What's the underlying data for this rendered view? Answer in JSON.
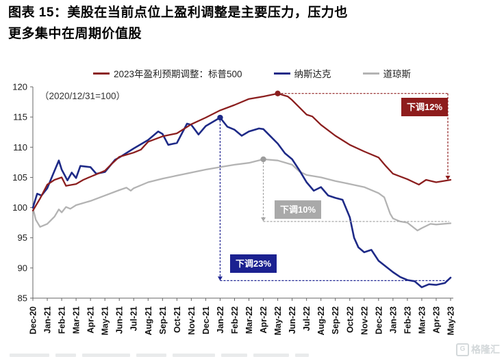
{
  "page": {
    "title_line1": "图表 15：美股在当前点位上盈利调整是主要压力，压力也",
    "title_line2": "更多集中在周期价值股"
  },
  "footer": {
    "watermark_icon": "G",
    "watermark_text": "格隆汇"
  },
  "chart_data": {
    "type": "line",
    "note": "（2020/12/31=100）",
    "ylim": [
      85,
      120
    ],
    "yticks": [
      85,
      90,
      95,
      100,
      105,
      110,
      115,
      120
    ],
    "grid": false,
    "legend_position": "top",
    "categories": [
      "Dec-20",
      "Jan-21",
      "Feb-21",
      "Mar-21",
      "Apr-21",
      "May-21",
      "Jun-21",
      "Jul-21",
      "Aug-21",
      "Sep-21",
      "Oct-21",
      "Nov-21",
      "Dec-21",
      "Jan-22",
      "Feb-22",
      "Mar-22",
      "Apr-22",
      "May-22",
      "Jun-22",
      "Jul-22",
      "Aug-22",
      "Sep-22",
      "Oct-22",
      "Nov-22",
      "Dec-22",
      "Jan-23",
      "Feb-23",
      "Mar-23",
      "Apr-23",
      "May-23"
    ],
    "series": [
      {
        "id": "sp500",
        "name": "2023年盈利预期调整：标普500",
        "color": "#8b1e1e",
        "marker": [
          17,
          118.9
        ],
        "points": [
          [
            0,
            99.5
          ],
          [
            0.5,
            101.5
          ],
          [
            1,
            103.8
          ],
          [
            1.5,
            104.6
          ],
          [
            2,
            105.0
          ],
          [
            2.3,
            103.6
          ],
          [
            3,
            103.9
          ],
          [
            3.5,
            104.6
          ],
          [
            4,
            105.1
          ],
          [
            5,
            106.1
          ],
          [
            5.5,
            107.3
          ],
          [
            6,
            108.4
          ],
          [
            7,
            109.1
          ],
          [
            7.5,
            109.6
          ],
          [
            8,
            110.9
          ],
          [
            9,
            111.8
          ],
          [
            10,
            112.3
          ],
          [
            11,
            113.8
          ],
          [
            12,
            114.9
          ],
          [
            13,
            116.1
          ],
          [
            14,
            117.0
          ],
          [
            15,
            118.0
          ],
          [
            16,
            118.4
          ],
          [
            17,
            118.9
          ],
          [
            17.7,
            118.4
          ],
          [
            18,
            117.8
          ],
          [
            19,
            115.4
          ],
          [
            19.4,
            115.1
          ],
          [
            20,
            113.7
          ],
          [
            21,
            111.9
          ],
          [
            22,
            110.4
          ],
          [
            23,
            109.3
          ],
          [
            24,
            108.3
          ],
          [
            24.5,
            106.9
          ],
          [
            25,
            105.6
          ],
          [
            26,
            104.7
          ],
          [
            26.8,
            103.8
          ],
          [
            27.3,
            104.6
          ],
          [
            28,
            104.2
          ],
          [
            29,
            104.6
          ]
        ]
      },
      {
        "id": "nasdaq",
        "name": "纳斯达克",
        "color": "#1e2a87",
        "marker": [
          13,
          114.9
        ],
        "points": [
          [
            0,
            100
          ],
          [
            0.3,
            102.3
          ],
          [
            0.6,
            102.0
          ],
          [
            1,
            103.2
          ],
          [
            1.4,
            105.5
          ],
          [
            1.8,
            107.8
          ],
          [
            2,
            106.3
          ],
          [
            2.4,
            104.5
          ],
          [
            2.7,
            105.8
          ],
          [
            3,
            104.9
          ],
          [
            3.3,
            106.9
          ],
          [
            4,
            106.7
          ],
          [
            4.4,
            105.6
          ],
          [
            5,
            105.9
          ],
          [
            5.7,
            107.9
          ],
          [
            6,
            108.3
          ],
          [
            7,
            109.8
          ],
          [
            8,
            111.2
          ],
          [
            8.7,
            112.6
          ],
          [
            9,
            112.2
          ],
          [
            9.4,
            110.4
          ],
          [
            10,
            110.7
          ],
          [
            10.7,
            113.9
          ],
          [
            11,
            113.7
          ],
          [
            11.5,
            112.1
          ],
          [
            12,
            113.5
          ],
          [
            13,
            114.9
          ],
          [
            13.5,
            113.4
          ],
          [
            14,
            112.9
          ],
          [
            14.5,
            111.9
          ],
          [
            15,
            112.6
          ],
          [
            15.7,
            113.1
          ],
          [
            16,
            113.0
          ],
          [
            16.5,
            111.8
          ],
          [
            17,
            110.6
          ],
          [
            17.5,
            109.0
          ],
          [
            18,
            108.0
          ],
          [
            18.5,
            106.2
          ],
          [
            19,
            104.2
          ],
          [
            19.5,
            102.8
          ],
          [
            20,
            103.4
          ],
          [
            20.5,
            102.0
          ],
          [
            21,
            101.6
          ],
          [
            21.5,
            101.3
          ],
          [
            22,
            98.4
          ],
          [
            22.3,
            95.0
          ],
          [
            22.6,
            93.4
          ],
          [
            23,
            92.6
          ],
          [
            23.5,
            93.0
          ],
          [
            24,
            91.2
          ],
          [
            25,
            89.3
          ],
          [
            25.5,
            88.5
          ],
          [
            26,
            88.0
          ],
          [
            26.5,
            87.8
          ],
          [
            27,
            86.8
          ],
          [
            27.5,
            87.3
          ],
          [
            28,
            87.2
          ],
          [
            28.6,
            87.5
          ],
          [
            29,
            88.4
          ]
        ]
      },
      {
        "id": "dow",
        "name": "道琼斯",
        "color": "#b3b3b3",
        "marker": [
          16,
          108.0
        ],
        "points": [
          [
            0,
            100
          ],
          [
            0.2,
            98.0
          ],
          [
            0.5,
            96.8
          ],
          [
            1,
            97.3
          ],
          [
            1.5,
            98.5
          ],
          [
            1.8,
            99.7
          ],
          [
            2,
            99.2
          ],
          [
            2.3,
            100.1
          ],
          [
            2.6,
            99.8
          ],
          [
            3,
            100.4
          ],
          [
            4,
            101.1
          ],
          [
            5,
            102.0
          ],
          [
            6,
            102.9
          ],
          [
            6.5,
            103.3
          ],
          [
            6.8,
            102.8
          ],
          [
            7,
            103.2
          ],
          [
            8,
            104.2
          ],
          [
            9,
            104.8
          ],
          [
            10,
            105.3
          ],
          [
            11,
            105.8
          ],
          [
            12,
            106.3
          ],
          [
            13,
            106.7
          ],
          [
            14,
            107.1
          ],
          [
            15,
            107.4
          ],
          [
            16,
            108.0
          ],
          [
            17,
            107.8
          ],
          [
            18,
            107.1
          ],
          [
            18.5,
            106.0
          ],
          [
            19,
            105.4
          ],
          [
            20,
            105.0
          ],
          [
            21,
            104.4
          ],
          [
            22,
            103.9
          ],
          [
            23,
            103.4
          ],
          [
            24,
            102.4
          ],
          [
            24.4,
            101.7
          ],
          [
            24.8,
            99.0
          ],
          [
            25,
            98.2
          ],
          [
            25.5,
            97.7
          ],
          [
            26,
            97.5
          ],
          [
            26.7,
            96.2
          ],
          [
            27,
            96.6
          ],
          [
            27.6,
            97.3
          ],
          [
            28,
            97.2
          ],
          [
            29,
            97.4
          ]
        ]
      }
    ],
    "annotations": [
      {
        "series": "sp500",
        "label": "下调12%",
        "box_color": "#8e1c1c",
        "from_value": 118.9,
        "to_value": 104.6
      },
      {
        "series": "dow",
        "label": "下调10%",
        "box_color": "#a9a9a9",
        "from_value": 108.0,
        "to_value": 97.7
      },
      {
        "series": "nasdaq",
        "label": "下调23%",
        "box_color": "#1b2190",
        "from_value": 114.9,
        "to_value": 87.9
      }
    ]
  }
}
